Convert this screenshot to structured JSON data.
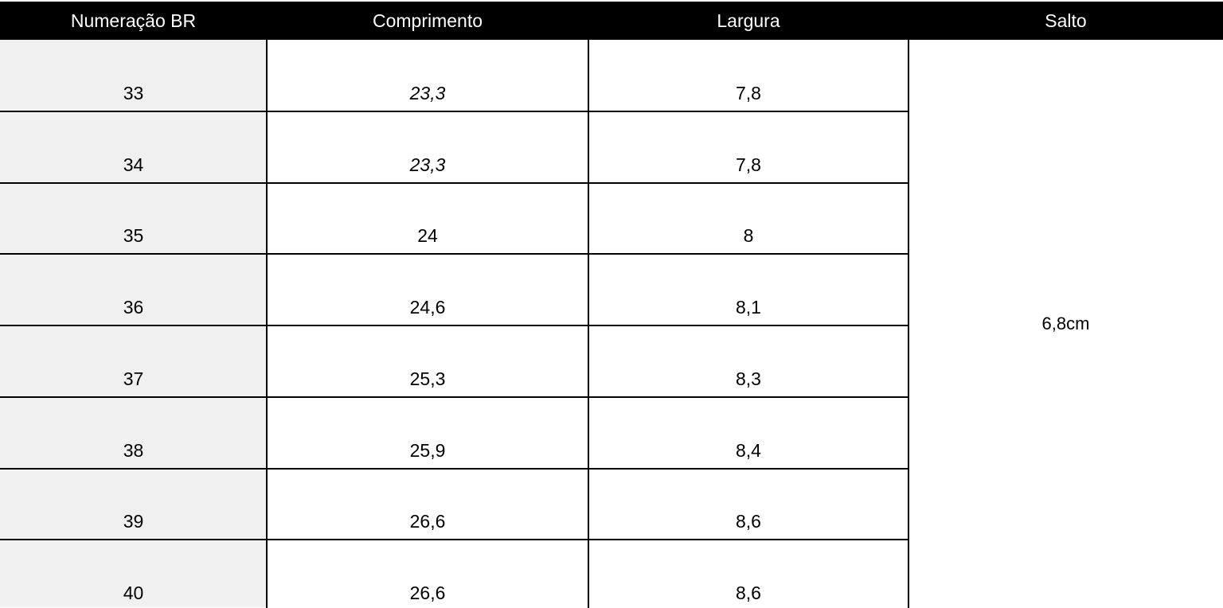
{
  "table": {
    "headers": [
      "Numeração BR",
      "Comprimento",
      "Largura",
      "Salto"
    ],
    "rows": [
      [
        "33",
        "23,3",
        "7,8"
      ],
      [
        "34",
        "23,3",
        "7,8"
      ],
      [
        "35",
        "24",
        "8"
      ],
      [
        "36",
        "24,6",
        "8,1"
      ],
      [
        "37",
        "25,3",
        "8,3"
      ],
      [
        "38",
        "25,9",
        "8,4"
      ],
      [
        "39",
        "26,6",
        "8,6"
      ],
      [
        "40",
        "26,6",
        "8,6"
      ]
    ],
    "salto": "6,8cm"
  }
}
